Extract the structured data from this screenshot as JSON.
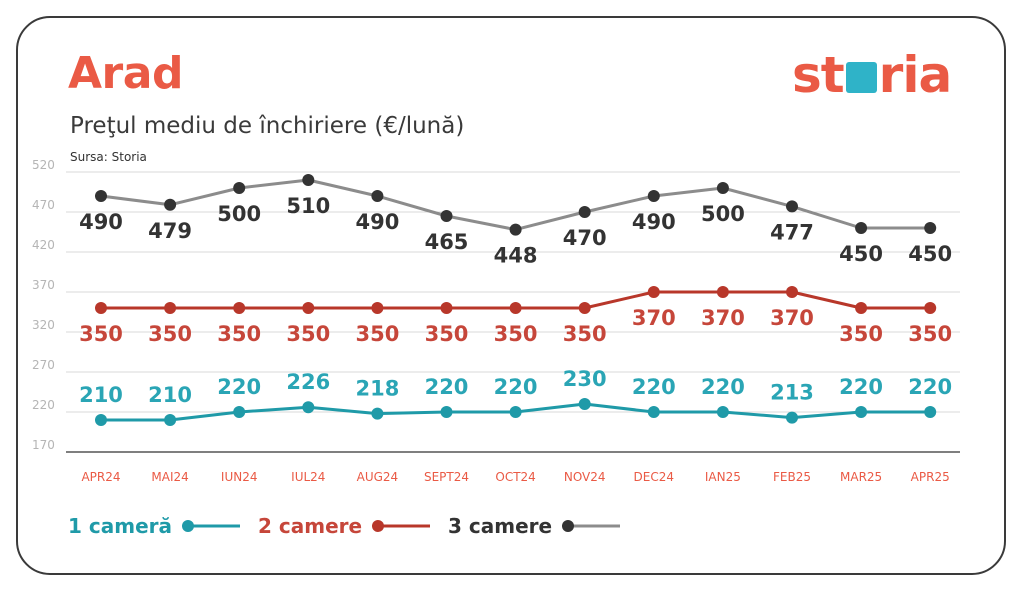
{
  "header": {
    "city": "Arad",
    "title": "Preţul mediu de închiriere (€/lună)",
    "source": "Sursa: Storia",
    "logo_part1": "st",
    "logo_part2": "ria"
  },
  "colors": {
    "accent": "#ea5a45",
    "series_1": "#1f9aa8",
    "series_2": "#b8372a",
    "series_3_line": "#8c8c8c",
    "series_3_marker": "#333333",
    "gridline": "#d9d9d9",
    "axis_tick": "#ea5a45"
  },
  "chart_data": {
    "type": "line",
    "categories": [
      "APR24",
      "MAI24",
      "IUN24",
      "IUL24",
      "AUG24",
      "SEPT24",
      "OCT24",
      "NOV24",
      "DEC24",
      "IAN25",
      "FEB25",
      "MAR25",
      "APR25"
    ],
    "yticks": [
      170,
      220,
      270,
      320,
      370,
      420,
      470,
      520
    ],
    "ylim": [
      170,
      520
    ],
    "grid": true,
    "legend_position": "bottom-left",
    "series": [
      {
        "name": "1 cameră",
        "values": [
          210,
          210,
          220,
          226,
          218,
          220,
          220,
          230,
          220,
          220,
          213,
          220,
          220
        ]
      },
      {
        "name": "2 camere",
        "values": [
          350,
          350,
          350,
          350,
          350,
          350,
          350,
          350,
          370,
          370,
          370,
          350,
          350
        ]
      },
      {
        "name": "3 camere",
        "values": [
          490,
          479,
          500,
          510,
          490,
          465,
          448,
          470,
          490,
          500,
          477,
          450,
          450
        ]
      }
    ]
  }
}
